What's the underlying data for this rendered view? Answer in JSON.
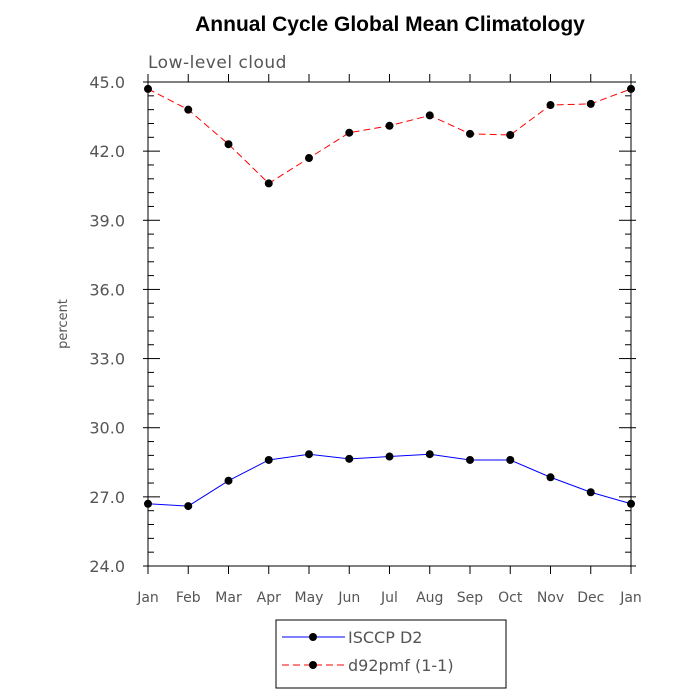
{
  "chart_data": {
    "type": "line",
    "title": "Annual Cycle Global Mean Climatology",
    "subtitle": "Low-level cloud",
    "ylabel": "percent",
    "xlabel": "",
    "categories": [
      "Jan",
      "Feb",
      "Mar",
      "Apr",
      "May",
      "Jun",
      "Jul",
      "Aug",
      "Sep",
      "Oct",
      "Nov",
      "Dec",
      "Jan"
    ],
    "ylim": [
      24.0,
      45.0
    ],
    "yticks": [
      "24.0",
      "27.0",
      "30.0",
      "33.0",
      "36.0",
      "39.0",
      "42.0",
      "45.0"
    ],
    "series": [
      {
        "name": "ISCCP D2",
        "color": "#0000ff",
        "dash": "solid",
        "values": [
          26.7,
          26.6,
          27.7,
          28.6,
          28.85,
          28.65,
          28.75,
          28.85,
          28.6,
          28.6,
          27.85,
          27.2,
          26.7
        ]
      },
      {
        "name": "d92pmf (1-1)",
        "color": "#ff0000",
        "dash": "dashed",
        "values": [
          44.7,
          43.8,
          42.3,
          40.6,
          41.7,
          42.8,
          43.1,
          43.55,
          42.75,
          42.7,
          44.0,
          44.05,
          44.7
        ]
      }
    ],
    "legend_position": "bottom-center",
    "grid": false
  }
}
